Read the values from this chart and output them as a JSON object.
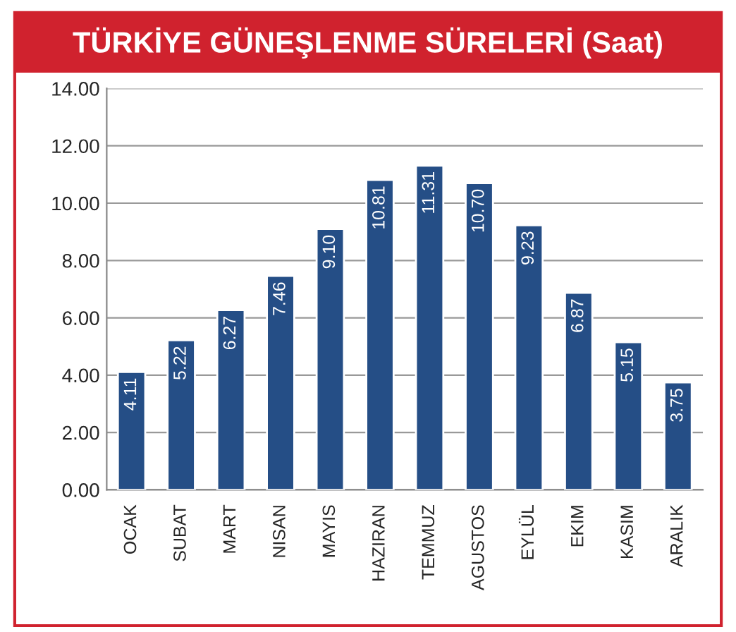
{
  "chart_data": {
    "type": "bar",
    "title": "TÜRKİYE GÜNEŞLENME SÜRELERİ (Saat)",
    "categories": [
      "OCAK",
      "SUBAT",
      "MART",
      "NISAN",
      "MAYIS",
      "HAZIRAN",
      "TEMMUZ",
      "AGUSTOS",
      "EYLÜL",
      "EKIM",
      "KASIM",
      "ARALIK"
    ],
    "values": [
      4.11,
      5.22,
      6.27,
      7.46,
      9.1,
      10.81,
      11.31,
      10.7,
      9.23,
      6.87,
      5.15,
      3.75
    ],
    "value_labels": [
      "4.11",
      "5.22",
      "6.27",
      "7.46",
      "9.10",
      "10.81",
      "11.31",
      "10.70",
      "9.23",
      "6.87",
      "5.15",
      "3.75"
    ],
    "color": "#254e86",
    "ylim": [
      0,
      14
    ],
    "yticks": [
      {
        "value": 0,
        "label": "0.00"
      },
      {
        "value": 2,
        "label": "2.00"
      },
      {
        "value": 4,
        "label": "4.00"
      },
      {
        "value": 6,
        "label": "6.00"
      },
      {
        "value": 8,
        "label": "8.00"
      },
      {
        "value": 10,
        "label": "10.00"
      },
      {
        "value": 12,
        "label": "12.00"
      },
      {
        "value": 14,
        "label": "14.00"
      }
    ],
    "grid": "y"
  }
}
